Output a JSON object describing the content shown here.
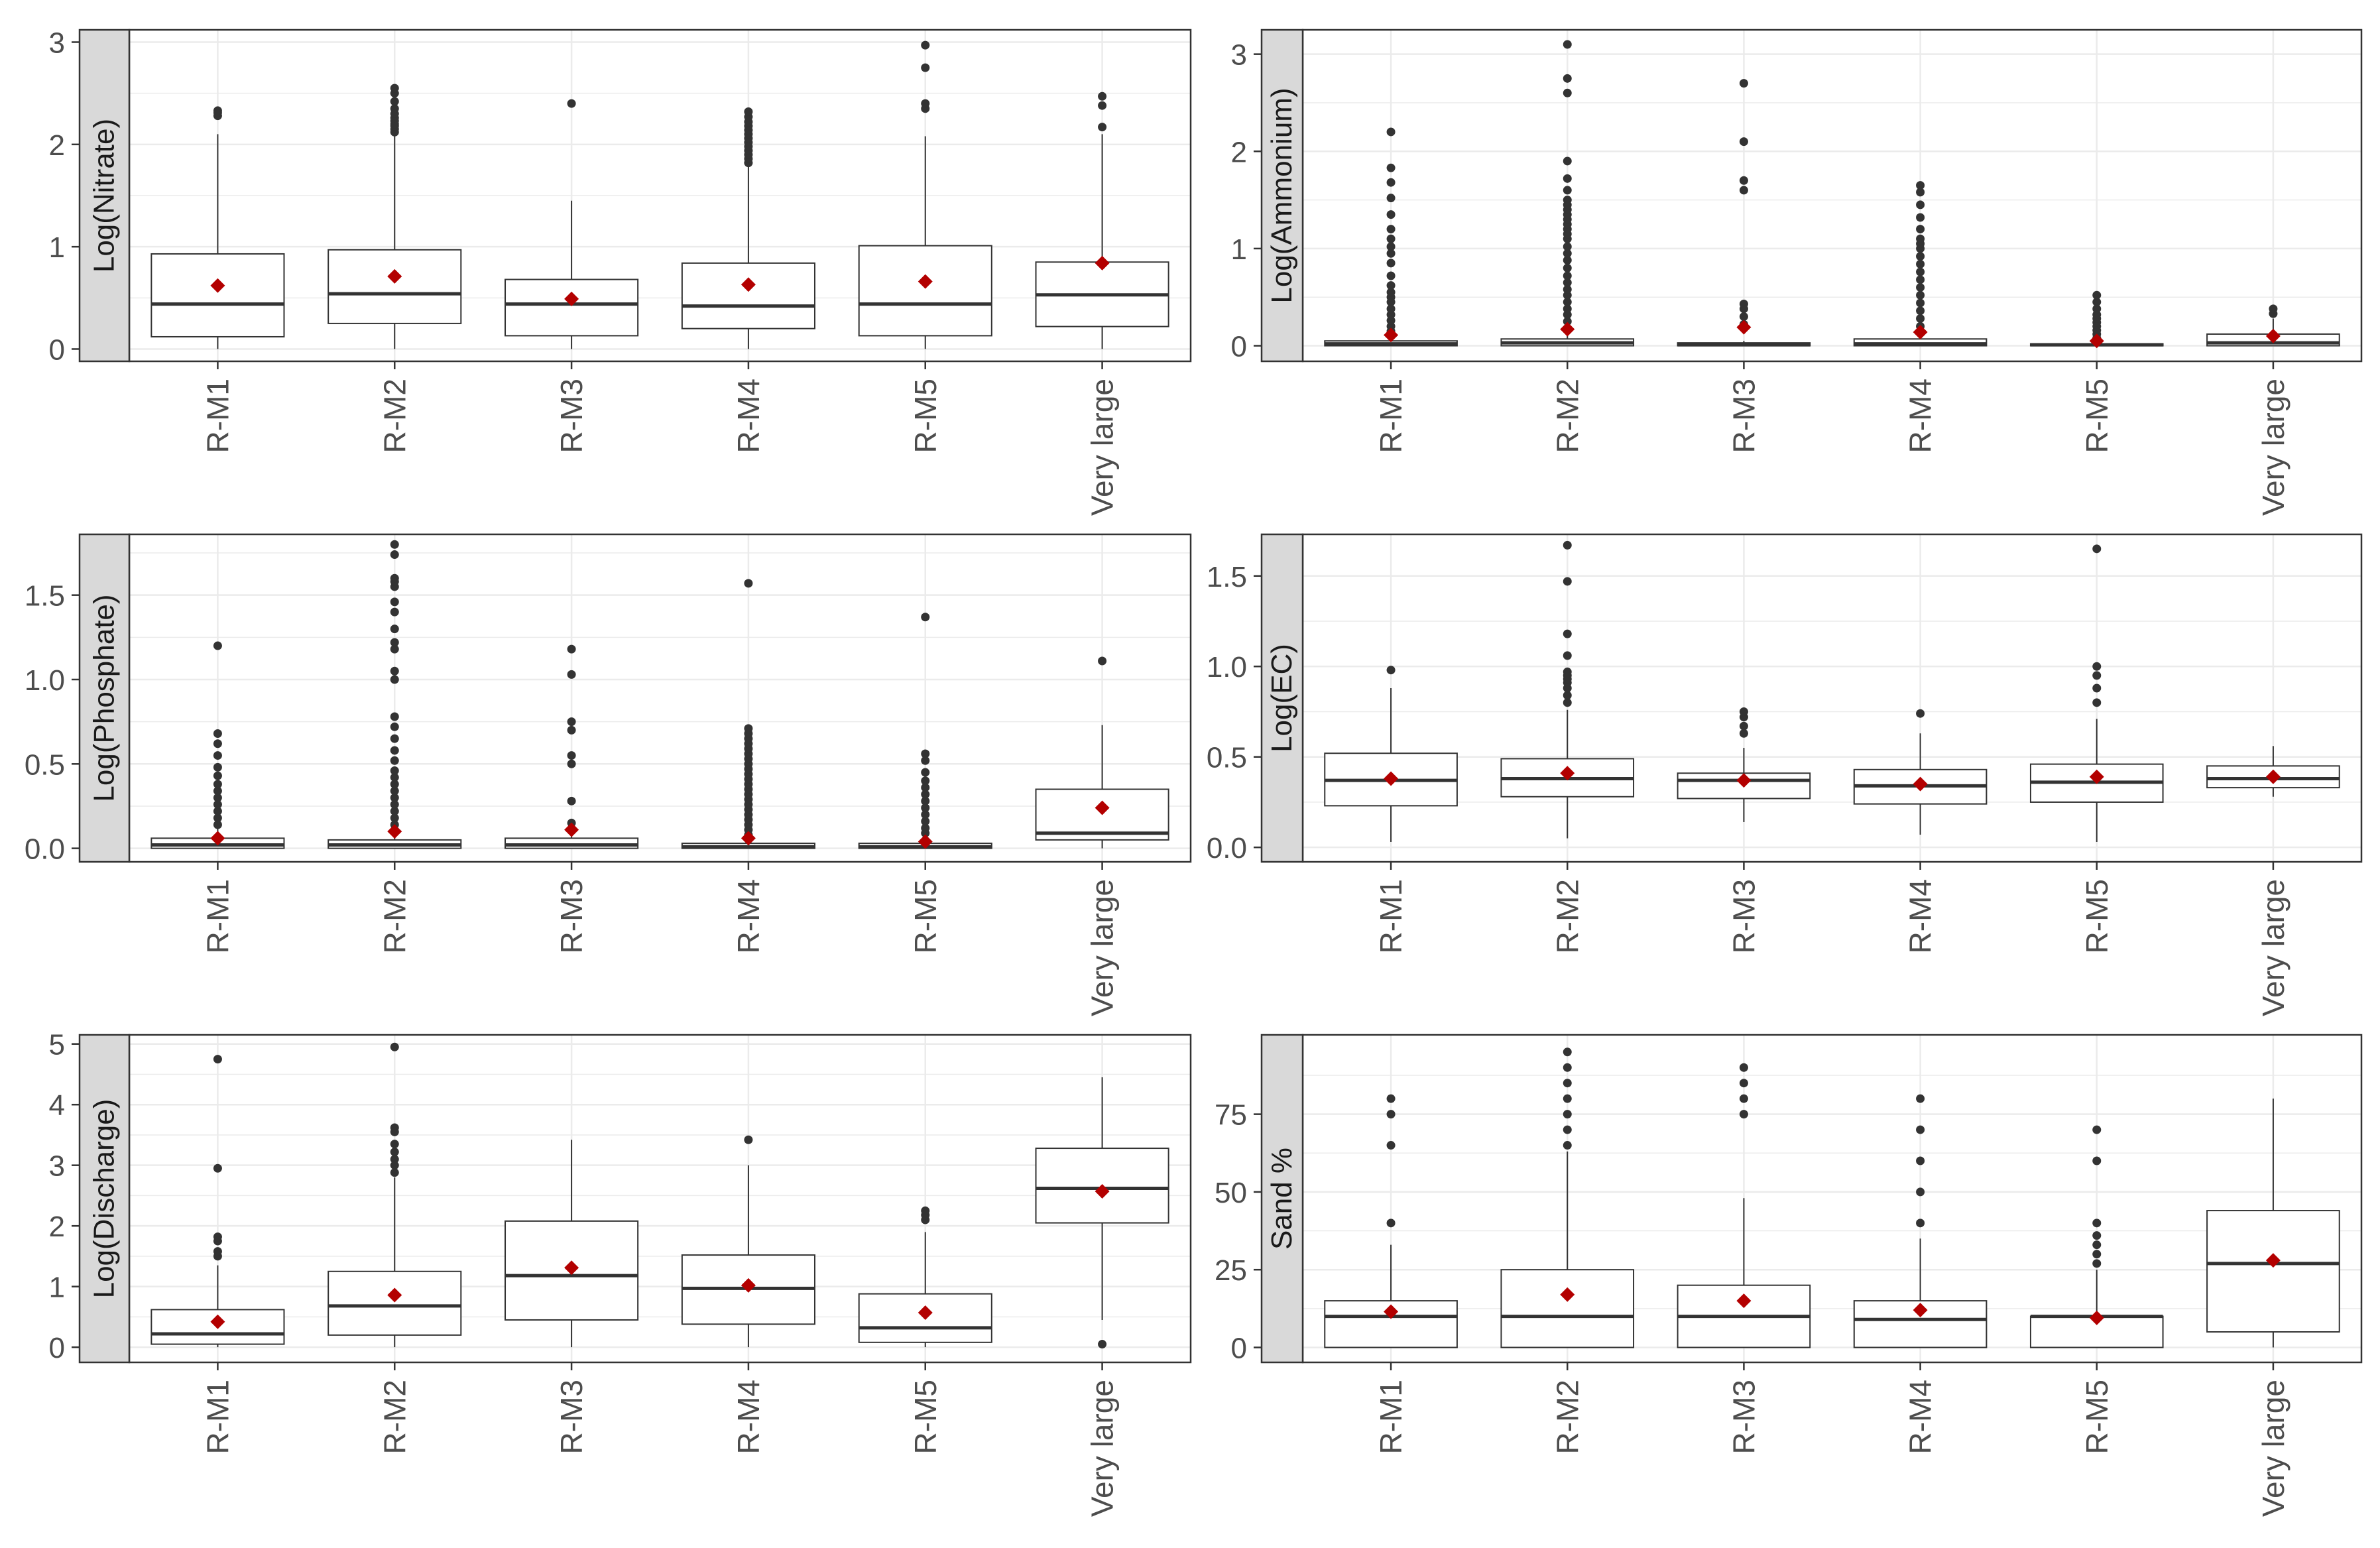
{
  "categories": [
    "R-M1",
    "R-M2",
    "R-M3",
    "R-M4",
    "R-M5",
    "Very large"
  ],
  "colors": {
    "mean_marker": "#B30000",
    "outlier": "#333333",
    "strip": "#D9D9D9",
    "grid": "#EBEBEB",
    "box_border": "#333333",
    "axis_text": "#4D4D4D"
  },
  "chart_data": [
    {
      "type": "box",
      "ylabel": "Log(Nitrate)",
      "ylim": [
        -0.12,
        3.12
      ],
      "yticks": [
        0,
        1,
        2,
        3
      ],
      "boxes": [
        {
          "category": "R-M1",
          "q1": 0.12,
          "median": 0.44,
          "q3": 0.93,
          "lower": 0.0,
          "upper": 2.1,
          "mean": 0.62,
          "outliers": [
            2.28,
            2.31,
            2.33
          ]
        },
        {
          "category": "R-M2",
          "q1": 0.25,
          "median": 0.54,
          "q3": 0.97,
          "lower": 0.0,
          "upper": 2.1,
          "mean": 0.71,
          "outliers": [
            2.12,
            2.15,
            2.18,
            2.2,
            2.23,
            2.26,
            2.3,
            2.35,
            2.42,
            2.5,
            2.55
          ]
        },
        {
          "category": "R-M3",
          "q1": 0.13,
          "median": 0.44,
          "q3": 0.68,
          "lower": 0.0,
          "upper": 1.45,
          "mean": 0.49,
          "outliers": [
            2.4
          ]
        },
        {
          "category": "R-M4",
          "q1": 0.2,
          "median": 0.42,
          "q3": 0.84,
          "lower": 0.0,
          "upper": 1.8,
          "mean": 0.63,
          "outliers": [
            1.82,
            1.86,
            1.9,
            1.94,
            1.98,
            2.02,
            2.06,
            2.1,
            2.14,
            2.18,
            2.22,
            2.27,
            2.32
          ]
        },
        {
          "category": "R-M5",
          "q1": 0.13,
          "median": 0.44,
          "q3": 1.01,
          "lower": 0.0,
          "upper": 2.08,
          "mean": 0.66,
          "outliers": [
            2.35,
            2.4,
            2.75,
            2.97
          ]
        },
        {
          "category": "Very large",
          "q1": 0.22,
          "median": 0.53,
          "q3": 0.85,
          "lower": 0.0,
          "upper": 2.1,
          "mean": 0.84,
          "outliers": [
            2.17,
            2.38,
            2.47
          ]
        }
      ]
    },
    {
      "type": "box",
      "ylabel": "Log(Ammonium)",
      "ylim": [
        -0.16,
        3.25
      ],
      "yticks": [
        0,
        1,
        2,
        3
      ],
      "boxes": [
        {
          "category": "R-M1",
          "q1": 0.0,
          "median": 0.02,
          "q3": 0.05,
          "lower": 0.0,
          "upper": 0.1,
          "mean": 0.11,
          "outliers": [
            0.15,
            0.2,
            0.26,
            0.32,
            0.38,
            0.45,
            0.5,
            0.55,
            0.62,
            0.72,
            0.85,
            0.95,
            1.02,
            1.1,
            1.2,
            1.35,
            1.52,
            1.68,
            1.83,
            2.2
          ]
        },
        {
          "category": "R-M2",
          "q1": 0.0,
          "median": 0.03,
          "q3": 0.07,
          "lower": 0.0,
          "upper": 0.15,
          "mean": 0.17,
          "outliers": [
            0.18,
            0.25,
            0.32,
            0.38,
            0.45,
            0.52,
            0.58,
            0.65,
            0.72,
            0.8,
            0.88,
            0.95,
            1.02,
            1.1,
            1.15,
            1.2,
            1.25,
            1.3,
            1.35,
            1.4,
            1.45,
            1.5,
            1.6,
            1.72,
            1.9,
            2.6,
            2.75,
            3.1
          ]
        },
        {
          "category": "R-M3",
          "q1": 0.0,
          "median": 0.01,
          "q3": 0.03,
          "lower": 0.0,
          "upper": 0.05,
          "mean": 0.19,
          "outliers": [
            0.22,
            0.3,
            0.38,
            0.43,
            1.6,
            1.7,
            2.1,
            2.7
          ]
        },
        {
          "category": "R-M4",
          "q1": 0.0,
          "median": 0.02,
          "q3": 0.07,
          "lower": 0.0,
          "upper": 0.12,
          "mean": 0.14,
          "outliers": [
            0.2,
            0.28,
            0.36,
            0.44,
            0.52,
            0.6,
            0.68,
            0.76,
            0.84,
            0.92,
            1.0,
            1.05,
            1.1,
            1.2,
            1.32,
            1.45,
            1.58,
            1.65
          ]
        },
        {
          "category": "R-M5",
          "q1": 0.0,
          "median": 0.01,
          "q3": 0.02,
          "lower": 0.0,
          "upper": 0.04,
          "mean": 0.05,
          "outliers": [
            0.08,
            0.12,
            0.16,
            0.2,
            0.24,
            0.28,
            0.32,
            0.38,
            0.45,
            0.52
          ]
        },
        {
          "category": "Very large",
          "q1": 0.0,
          "median": 0.03,
          "q3": 0.12,
          "lower": 0.0,
          "upper": 0.28,
          "mean": 0.1,
          "outliers": [
            0.33,
            0.38
          ]
        }
      ]
    },
    {
      "type": "box",
      "ylabel": "Log(Phosphate)",
      "ylim": [
        -0.08,
        1.86
      ],
      "yticks": [
        0.0,
        0.5,
        1.0,
        1.5
      ],
      "tick_labels": [
        "0.0",
        "0.5",
        "1.0",
        "1.5"
      ],
      "boxes": [
        {
          "category": "R-M1",
          "q1": 0.0,
          "median": 0.02,
          "q3": 0.06,
          "lower": 0.0,
          "upper": 0.12,
          "mean": 0.06,
          "outliers": [
            0.14,
            0.18,
            0.22,
            0.26,
            0.3,
            0.34,
            0.38,
            0.43,
            0.48,
            0.55,
            0.62,
            0.68,
            1.2
          ]
        },
        {
          "category": "R-M2",
          "q1": 0.0,
          "median": 0.02,
          "q3": 0.05,
          "lower": 0.0,
          "upper": 0.12,
          "mean": 0.1,
          "outliers": [
            0.14,
            0.18,
            0.22,
            0.26,
            0.3,
            0.34,
            0.38,
            0.42,
            0.46,
            0.52,
            0.58,
            0.65,
            0.72,
            0.78,
            1.0,
            1.05,
            1.18,
            1.22,
            1.3,
            1.4,
            1.46,
            1.55,
            1.58,
            1.6,
            1.74,
            1.8
          ]
        },
        {
          "category": "R-M3",
          "q1": 0.0,
          "median": 0.02,
          "q3": 0.06,
          "lower": 0.0,
          "upper": 0.12,
          "mean": 0.11,
          "outliers": [
            0.15,
            0.28,
            0.5,
            0.55,
            0.7,
            0.75,
            1.03,
            1.18
          ]
        },
        {
          "category": "R-M4",
          "q1": 0.0,
          "median": 0.01,
          "q3": 0.03,
          "lower": 0.0,
          "upper": 0.07,
          "mean": 0.06,
          "outliers": [
            0.08,
            0.11,
            0.14,
            0.17,
            0.2,
            0.23,
            0.26,
            0.29,
            0.32,
            0.35,
            0.38,
            0.41,
            0.44,
            0.47,
            0.5,
            0.53,
            0.56,
            0.59,
            0.62,
            0.65,
            0.68,
            0.71,
            1.57
          ]
        },
        {
          "category": "R-M5",
          "q1": 0.0,
          "median": 0.01,
          "q3": 0.03,
          "lower": 0.0,
          "upper": 0.07,
          "mean": 0.04,
          "outliers": [
            0.09,
            0.12,
            0.16,
            0.2,
            0.24,
            0.28,
            0.32,
            0.36,
            0.4,
            0.45,
            0.52,
            0.56,
            1.37
          ]
        },
        {
          "category": "Very large",
          "q1": 0.05,
          "median": 0.09,
          "q3": 0.35,
          "lower": 0.0,
          "upper": 0.73,
          "mean": 0.24,
          "outliers": [
            1.11
          ]
        }
      ]
    },
    {
      "type": "box",
      "ylabel": "Log(EC)",
      "ylim": [
        -0.08,
        1.73
      ],
      "yticks": [
        0.0,
        0.5,
        1.0,
        1.5
      ],
      "tick_labels": [
        "0.0",
        "0.5",
        "1.0",
        "1.5"
      ],
      "boxes": [
        {
          "category": "R-M1",
          "q1": 0.23,
          "median": 0.37,
          "q3": 0.52,
          "lower": 0.03,
          "upper": 0.88,
          "mean": 0.38,
          "outliers": [
            0.98
          ]
        },
        {
          "category": "R-M2",
          "q1": 0.28,
          "median": 0.38,
          "q3": 0.49,
          "lower": 0.05,
          "upper": 0.76,
          "mean": 0.41,
          "outliers": [
            0.8,
            0.84,
            0.88,
            0.91,
            0.93,
            0.95,
            0.97,
            1.06,
            1.18,
            1.47,
            1.67
          ]
        },
        {
          "category": "R-M3",
          "q1": 0.27,
          "median": 0.37,
          "q3": 0.41,
          "lower": 0.14,
          "upper": 0.55,
          "mean": 0.37,
          "outliers": [
            0.63,
            0.67,
            0.72,
            0.75
          ]
        },
        {
          "category": "R-M4",
          "q1": 0.24,
          "median": 0.34,
          "q3": 0.43,
          "lower": 0.07,
          "upper": 0.63,
          "mean": 0.35,
          "outliers": [
            0.74
          ]
        },
        {
          "category": "R-M5",
          "q1": 0.25,
          "median": 0.36,
          "q3": 0.46,
          "lower": 0.03,
          "upper": 0.71,
          "mean": 0.39,
          "outliers": [
            0.8,
            0.88,
            0.95,
            1.0,
            1.65
          ]
        },
        {
          "category": "Very large",
          "q1": 0.33,
          "median": 0.38,
          "q3": 0.45,
          "lower": 0.28,
          "upper": 0.56,
          "mean": 0.39,
          "outliers": []
        }
      ]
    },
    {
      "type": "box",
      "ylabel": "Log(Discharge)",
      "ylim": [
        -0.25,
        5.15
      ],
      "yticks": [
        0,
        1,
        2,
        3,
        4,
        5
      ],
      "boxes": [
        {
          "category": "R-M1",
          "q1": 0.05,
          "median": 0.22,
          "q3": 0.62,
          "lower": 0.0,
          "upper": 1.35,
          "mean": 0.42,
          "outliers": [
            1.5,
            1.58,
            1.75,
            1.82,
            2.95,
            4.75
          ]
        },
        {
          "category": "R-M2",
          "q1": 0.2,
          "median": 0.68,
          "q3": 1.25,
          "lower": 0.0,
          "upper": 2.8,
          "mean": 0.86,
          "outliers": [
            2.88,
            3.0,
            3.1,
            3.22,
            3.35,
            3.55,
            3.62,
            4.95
          ]
        },
        {
          "category": "R-M3",
          "q1": 0.45,
          "median": 1.18,
          "q3": 2.08,
          "lower": 0.0,
          "upper": 3.42,
          "mean": 1.31,
          "outliers": []
        },
        {
          "category": "R-M4",
          "q1": 0.38,
          "median": 0.97,
          "q3": 1.52,
          "lower": 0.0,
          "upper": 3.0,
          "mean": 1.02,
          "outliers": [
            3.42
          ]
        },
        {
          "category": "R-M5",
          "q1": 0.08,
          "median": 0.32,
          "q3": 0.88,
          "lower": 0.0,
          "upper": 1.9,
          "mean": 0.57,
          "outliers": [
            2.1,
            2.18,
            2.25
          ]
        },
        {
          "category": "Very large",
          "q1": 2.05,
          "median": 2.62,
          "q3": 3.28,
          "lower": 0.45,
          "upper": 4.45,
          "mean": 2.57,
          "outliers": [
            0.05
          ]
        }
      ]
    },
    {
      "type": "box",
      "ylabel": "Sand %",
      "ylim": [
        -4.8,
        100.5
      ],
      "yticks": [
        0,
        25,
        50,
        75
      ],
      "boxes": [
        {
          "category": "R-M1",
          "q1": 0,
          "median": 10,
          "q3": 15,
          "lower": 0,
          "upper": 33,
          "mean": 11.5,
          "outliers": [
            40,
            65,
            75,
            80
          ]
        },
        {
          "category": "R-M2",
          "q1": 0,
          "median": 10,
          "q3": 25,
          "lower": 0,
          "upper": 63,
          "mean": 17,
          "outliers": [
            65,
            70,
            75,
            80,
            85,
            90,
            95
          ]
        },
        {
          "category": "R-M3",
          "q1": 0,
          "median": 10,
          "q3": 20,
          "lower": 0,
          "upper": 48,
          "mean": 15,
          "outliers": [
            75,
            80,
            85,
            90
          ]
        },
        {
          "category": "R-M4",
          "q1": 0,
          "median": 9,
          "q3": 15,
          "lower": 0,
          "upper": 35,
          "mean": 12,
          "outliers": [
            40,
            50,
            60,
            70,
            80
          ]
        },
        {
          "category": "R-M5",
          "q1": 0,
          "median": 10,
          "q3": 10,
          "lower": 0,
          "upper": 25,
          "mean": 9.5,
          "outliers": [
            27,
            30,
            33,
            36,
            40,
            60,
            70
          ]
        },
        {
          "category": "Very large",
          "q1": 5,
          "median": 27,
          "q3": 44,
          "lower": 0,
          "upper": 80,
          "mean": 28,
          "outliers": []
        }
      ]
    }
  ]
}
